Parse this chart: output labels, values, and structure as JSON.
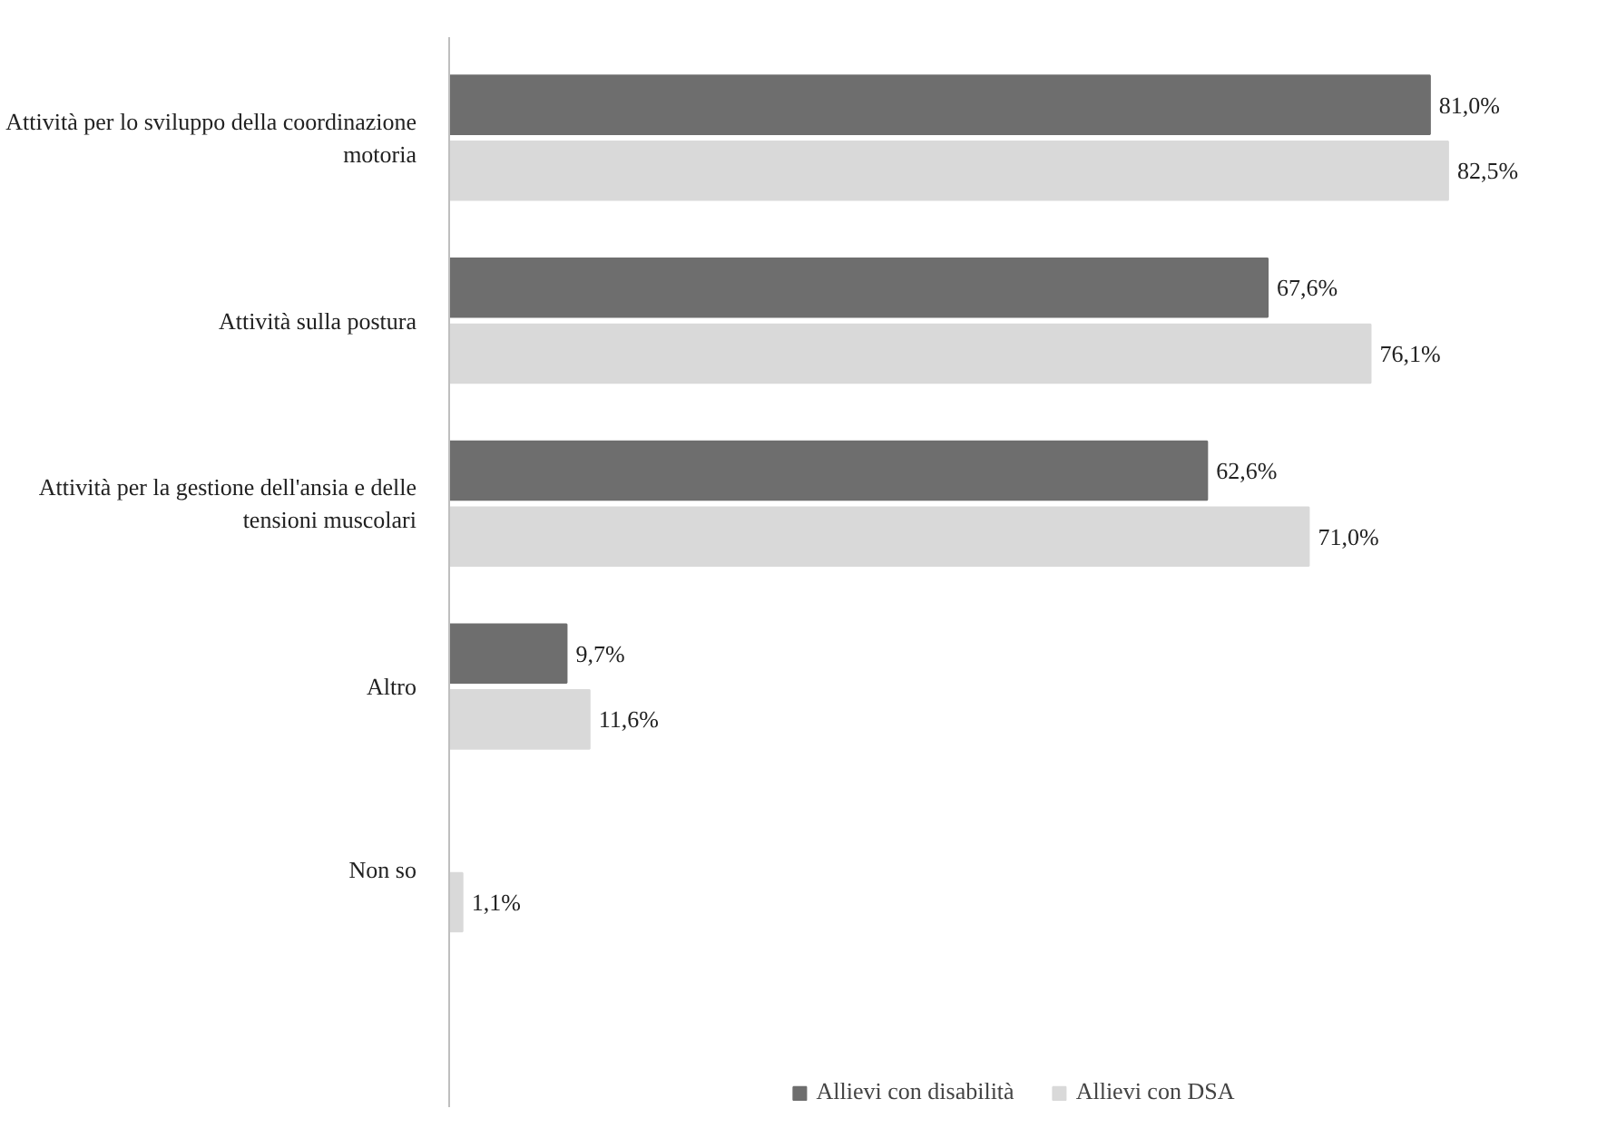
{
  "chart_data": {
    "type": "bar",
    "orientation": "horizontal",
    "categories": [
      "Attività per lo sviluppo della coordinazione motoria",
      "Attività sulla postura",
      "Attività per la gestione dell'ansia e delle tensioni muscolari",
      "Altro",
      "Non so"
    ],
    "series": [
      {
        "name": "Allievi con disabilità",
        "color": "#6e6e6e",
        "values": [
          81.0,
          67.6,
          62.6,
          9.7,
          null
        ],
        "value_labels": [
          "81,0%",
          "67,6%",
          "62,6%",
          "9,7%",
          null
        ]
      },
      {
        "name": "Allievi con DSA",
        "color": "#d9d9d9",
        "values": [
          82.5,
          76.1,
          71.0,
          11.6,
          1.1
        ],
        "value_labels": [
          "82,5%",
          "76,1%",
          "71,0%",
          "11,6%",
          "1,1%"
        ]
      }
    ],
    "legend": "bottom",
    "grid": false
  }
}
